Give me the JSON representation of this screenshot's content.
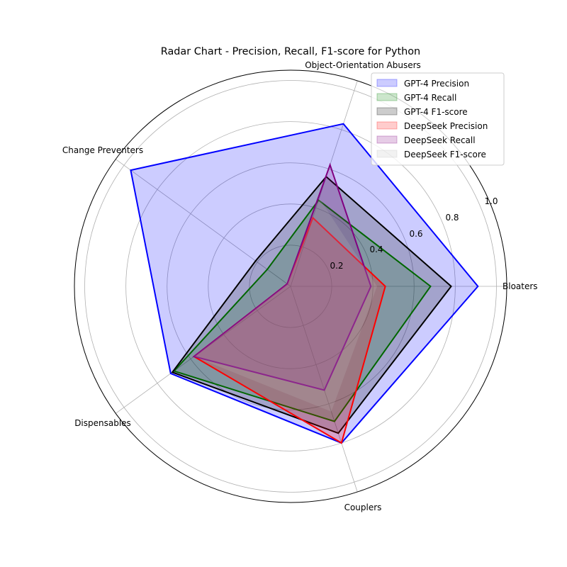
{
  "chart_data": {
    "type": "radar",
    "title": "Radar Chart - Precision, Recall, F1-score for Python",
    "categories": [
      "Bloaters",
      "Object-Orientation Abusers",
      "Change Preventers",
      "Dispensables",
      "Couplers"
    ],
    "rlim": [
      0,
      1.05
    ],
    "r_ticks": [
      "0.2",
      "0.4",
      "0.6",
      "0.8",
      "1.0"
    ],
    "r_tick_values": [
      0.2,
      0.4,
      0.6,
      0.8,
      1.0
    ],
    "grid": true,
    "legend_position": "top-right",
    "series": [
      {
        "name": "GPT-4 Precision",
        "values": [
          0.91,
          0.83,
          0.96,
          0.72,
          0.8
        ],
        "line_color": "#0000ff",
        "fill_color": "#0000ff"
      },
      {
        "name": "GPT-4 Recall",
        "values": [
          0.68,
          0.44,
          0.14,
          0.7,
          0.69
        ],
        "line_color": "#008000",
        "fill_color": "#008000"
      },
      {
        "name": "GPT-4 F1-score",
        "values": [
          0.78,
          0.56,
          0.21,
          0.71,
          0.75
        ],
        "line_color": "#000000",
        "fill_color": "#000000"
      },
      {
        "name": "DeepSeek Precision",
        "values": [
          0.46,
          0.35,
          0.02,
          0.58,
          0.8
        ],
        "line_color": "#ff0000",
        "fill_color": "#ff0000"
      },
      {
        "name": "DeepSeek Recall",
        "values": [
          0.39,
          0.62,
          0.02,
          0.58,
          0.53
        ],
        "line_color": "#800080",
        "fill_color": "#800080"
      },
      {
        "name": "DeepSeek F1-score",
        "values": [
          0.42,
          0.45,
          0.02,
          0.58,
          0.64
        ],
        "line_color": "none",
        "fill_color": "#bfbfbf"
      }
    ]
  }
}
